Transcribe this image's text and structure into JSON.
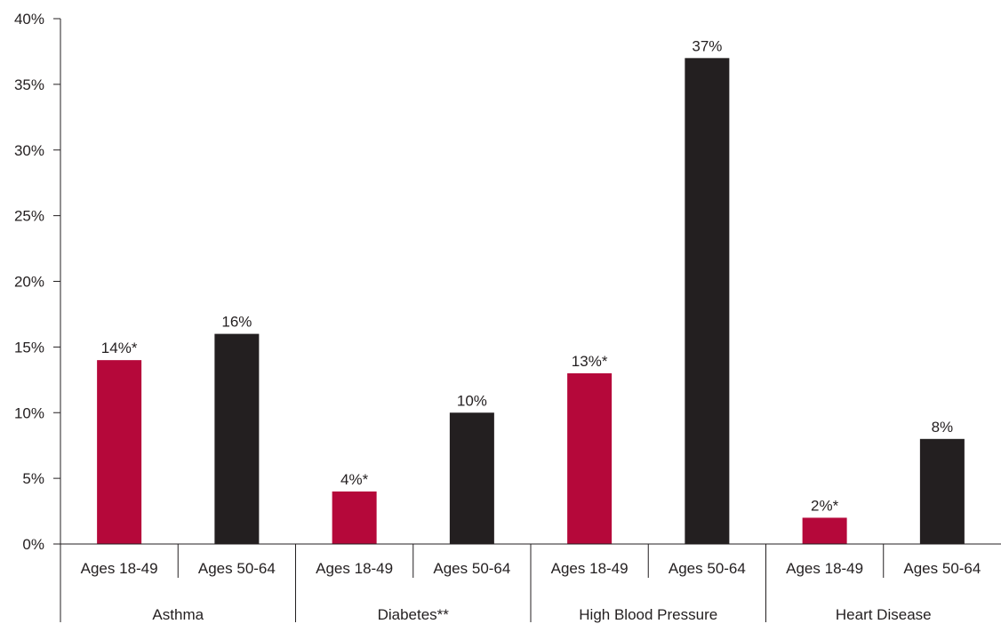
{
  "chart_data": {
    "type": "bar",
    "title": "",
    "xlabel": "",
    "ylabel": "",
    "ylim": [
      0,
      40
    ],
    "yticks": [
      0,
      5,
      10,
      15,
      20,
      25,
      30,
      35,
      40
    ],
    "ytick_labels": [
      "0%",
      "5%",
      "10%",
      "15%",
      "20%",
      "25%",
      "30%",
      "35%",
      "40%"
    ],
    "grid": false,
    "legend": "none",
    "groups": [
      "Asthma",
      "Diabetes**",
      "High Blood Pressure",
      "Heart Disease"
    ],
    "subcategories": [
      "Ages 18-49",
      "Ages 50-64"
    ],
    "series": [
      {
        "subcategory": "Ages 18-49",
        "color": "#b5083a",
        "values": [
          14,
          4,
          13,
          2
        ],
        "labels": [
          "14%*",
          "4%*",
          "13%*",
          "2%*"
        ]
      },
      {
        "subcategory": "Ages 50-64",
        "color": "#231f20",
        "values": [
          16,
          10,
          37,
          8
        ],
        "labels": [
          "16%",
          "10%",
          "37%",
          "8%"
        ]
      }
    ]
  }
}
